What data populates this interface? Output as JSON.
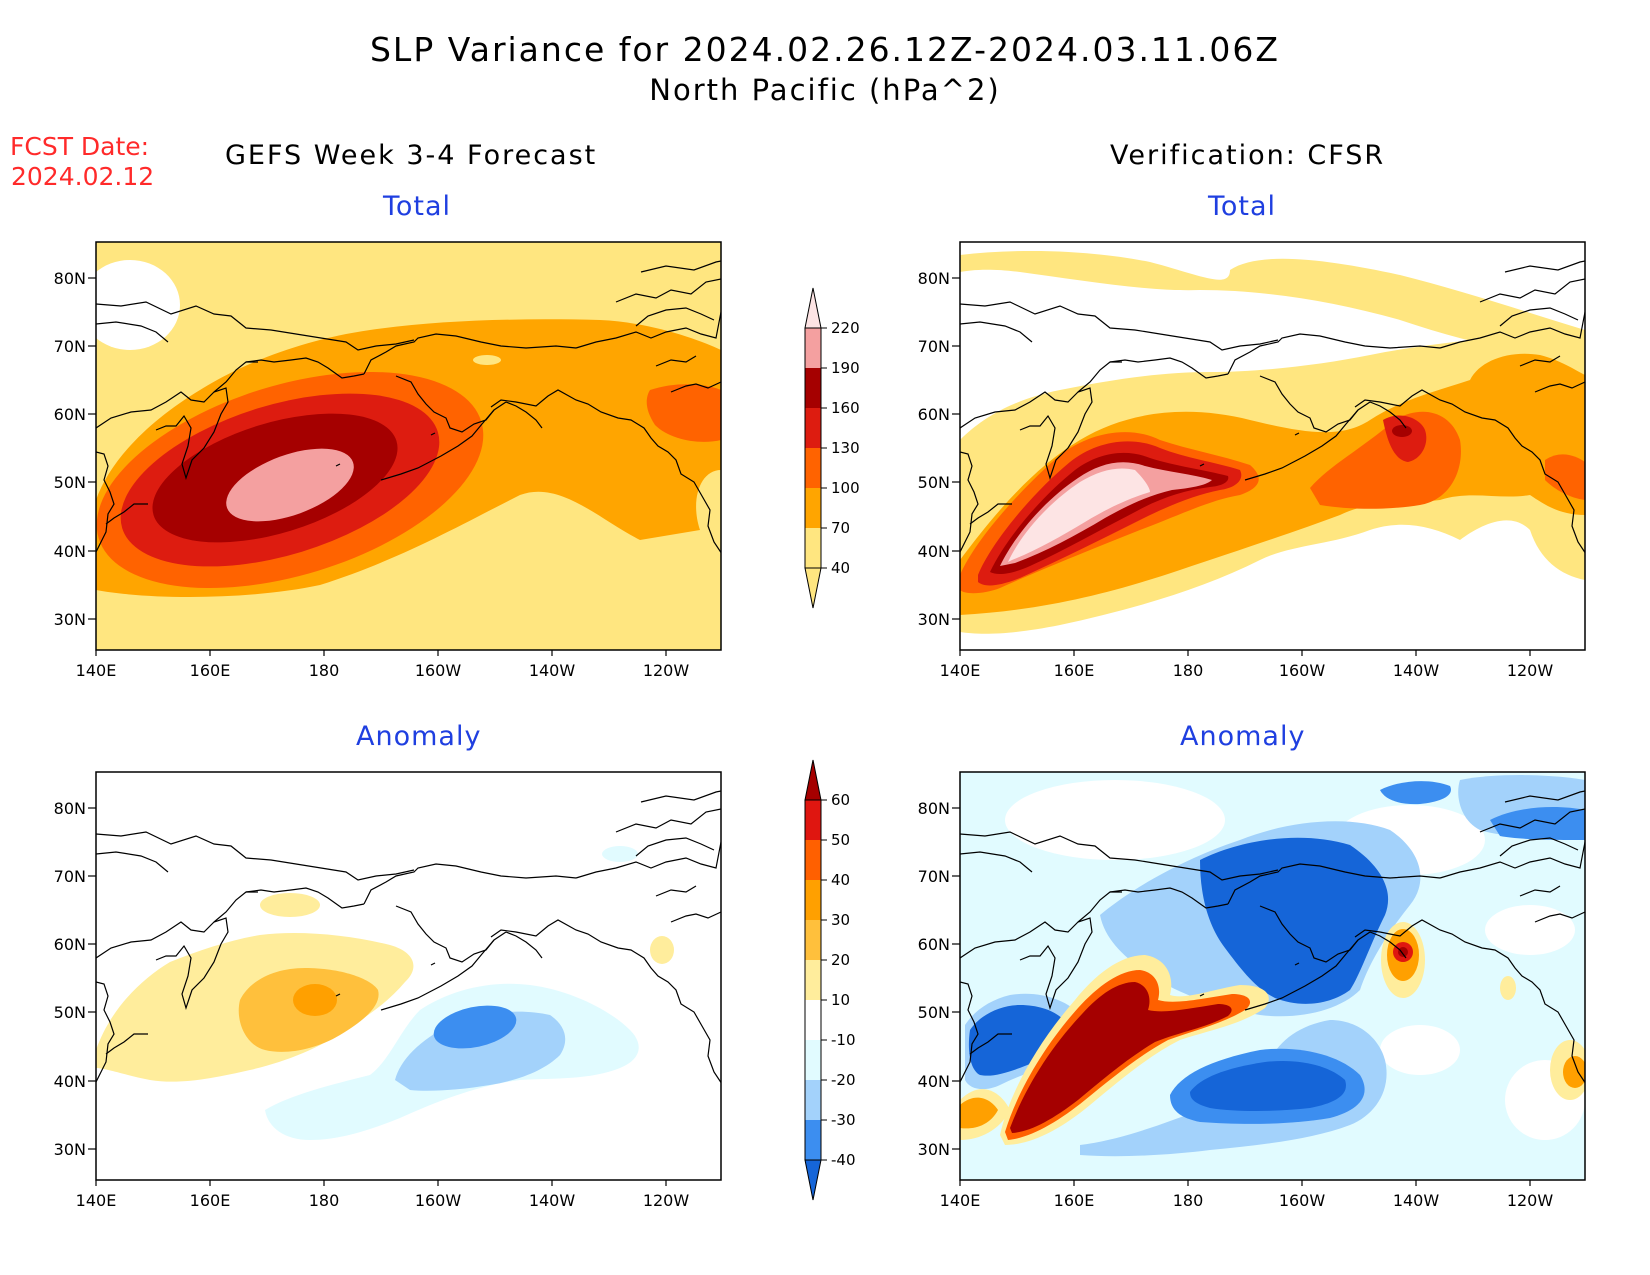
{
  "header": {
    "title_line1": "SLP Variance for 2024.02.26.12Z-2024.03.11.06Z",
    "title_line2": "North Pacific (hPa^2)",
    "fcst_label": "FCST Date:",
    "fcst_date": "2024.02.12"
  },
  "columns": {
    "left": "GEFS Week 3-4 Forecast",
    "right": "Verification: CFSR"
  },
  "panel_titles": {
    "total": "Total",
    "anomaly": "Anomaly"
  },
  "axes": {
    "lat_labels": [
      "80N",
      "70N",
      "60N",
      "50N",
      "40N",
      "30N"
    ],
    "lon_labels": [
      "140E",
      "160E",
      "180",
      "160W",
      "140W",
      "120W"
    ]
  },
  "colorbar_total": {
    "labels": [
      "40",
      "70",
      "100",
      "130",
      "160",
      "190",
      "220"
    ],
    "colors": [
      "#ffe680",
      "#ffa500",
      "#ff6300",
      "#dd1c10",
      "#a50000",
      "#f4a0a0",
      "#fde4e4"
    ]
  },
  "colorbar_anomaly": {
    "labels": [
      "-40",
      "-30",
      "-20",
      "-10",
      "10",
      "20",
      "30",
      "40",
      "50",
      "60"
    ],
    "colors": [
      "#1565d8",
      "#3c8ef0",
      "#a3d2fb",
      "#e1fbff",
      "#ffffff",
      "#ffed9c",
      "#ffc03c",
      "#ffa000",
      "#ff6000",
      "#df1610",
      "#a50000"
    ]
  }
}
